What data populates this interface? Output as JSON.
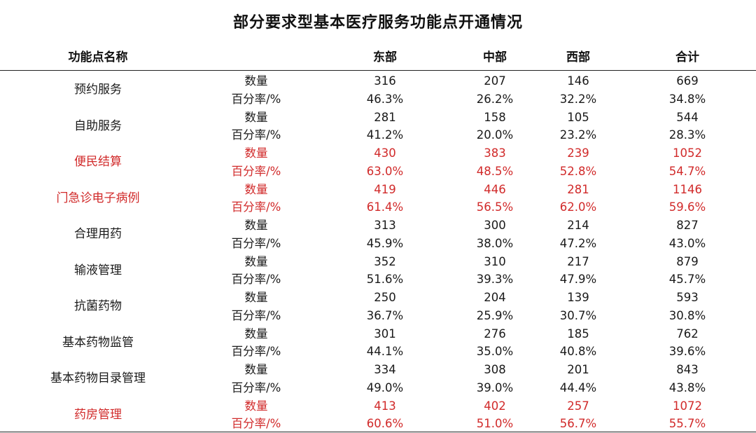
{
  "title": "部分要求型基本医疗服务功能点开通情况",
  "headers": {
    "name": "功能点名称",
    "east": "东部",
    "mid": "中部",
    "west": "西部",
    "total": "合计"
  },
  "metric_labels": {
    "count": "数量",
    "rate": "百分率/%"
  },
  "highlight_color": "#d12a2a",
  "rows": [
    {
      "name": "预约服务",
      "highlighted": false,
      "count": {
        "east": "316",
        "mid": "207",
        "west": "146",
        "total": "669"
      },
      "rate": {
        "east": "46.3%",
        "mid": "26.2%",
        "west": "32.2%",
        "total": "34.8%"
      }
    },
    {
      "name": "自助服务",
      "highlighted": false,
      "count": {
        "east": "281",
        "mid": "158",
        "west": "105",
        "total": "544"
      },
      "rate": {
        "east": "41.2%",
        "mid": "20.0%",
        "west": "23.2%",
        "total": "28.3%"
      }
    },
    {
      "name": "便民结算",
      "highlighted": true,
      "count": {
        "east": "430",
        "mid": "383",
        "west": "239",
        "total": "1052"
      },
      "rate": {
        "east": "63.0%",
        "mid": "48.5%",
        "west": "52.8%",
        "total": "54.7%"
      }
    },
    {
      "name": "门急诊电子病例",
      "highlighted": true,
      "count": {
        "east": "419",
        "mid": "446",
        "west": "281",
        "total": "1146"
      },
      "rate": {
        "east": "61.4%",
        "mid": "56.5%",
        "west": "62.0%",
        "total": "59.6%"
      }
    },
    {
      "name": "合理用药",
      "highlighted": false,
      "count": {
        "east": "313",
        "mid": "300",
        "west": "214",
        "total": "827"
      },
      "rate": {
        "east": "45.9%",
        "mid": "38.0%",
        "west": "47.2%",
        "total": "43.0%"
      }
    },
    {
      "name": "输液管理",
      "highlighted": false,
      "count": {
        "east": "352",
        "mid": "310",
        "west": "217",
        "total": "879"
      },
      "rate": {
        "east": "51.6%",
        "mid": "39.3%",
        "west": "47.9%",
        "total": "45.7%"
      }
    },
    {
      "name": "抗菌药物",
      "highlighted": false,
      "count": {
        "east": "250",
        "mid": "204",
        "west": "139",
        "total": "593"
      },
      "rate": {
        "east": "36.7%",
        "mid": "25.9%",
        "west": "30.7%",
        "total": "30.8%"
      }
    },
    {
      "name": "基本药物监管",
      "highlighted": false,
      "count": {
        "east": "301",
        "mid": "276",
        "west": "185",
        "total": "762"
      },
      "rate": {
        "east": "44.1%",
        "mid": "35.0%",
        "west": "40.8%",
        "total": "39.6%"
      }
    },
    {
      "name": "基本药物目录管理",
      "highlighted": false,
      "count": {
        "east": "334",
        "mid": "308",
        "west": "201",
        "total": "843"
      },
      "rate": {
        "east": "49.0%",
        "mid": "39.0%",
        "west": "44.4%",
        "total": "43.8%"
      }
    },
    {
      "name": "药房管理",
      "highlighted": true,
      "count": {
        "east": "413",
        "mid": "402",
        "west": "257",
        "total": "1072"
      },
      "rate": {
        "east": "60.6%",
        "mid": "51.0%",
        "west": "56.7%",
        "total": "55.7%"
      }
    }
  ]
}
